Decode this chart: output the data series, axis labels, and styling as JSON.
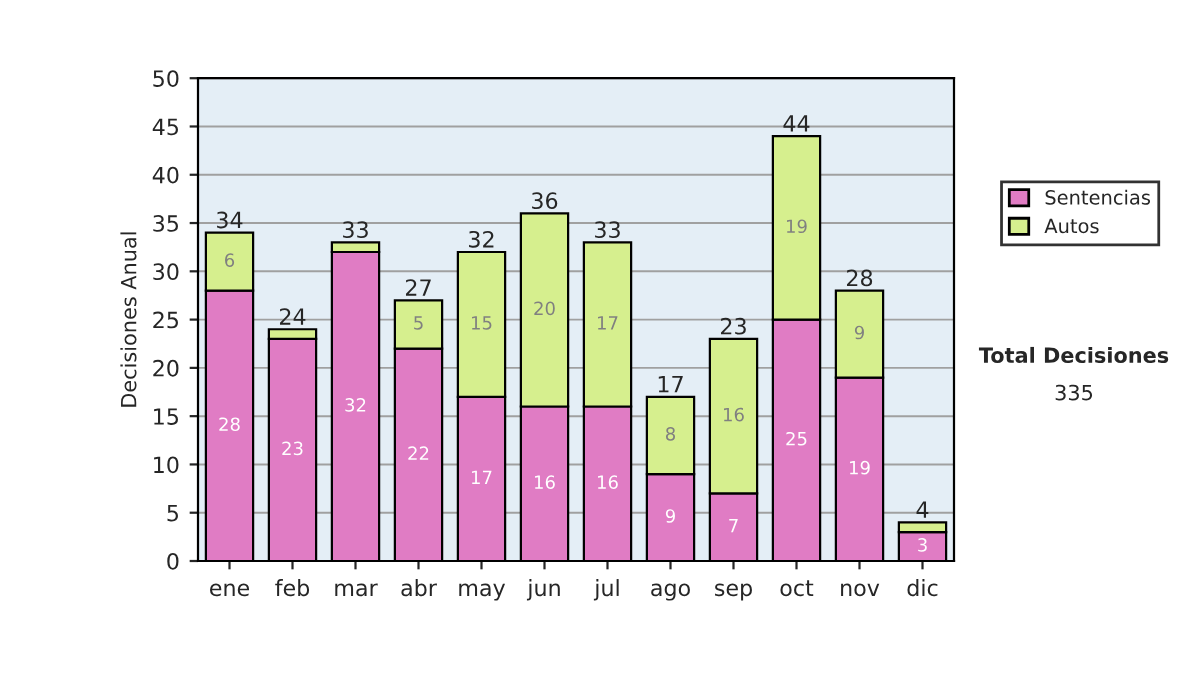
{
  "chart_data": {
    "type": "bar",
    "stacked": true,
    "ylabel": "Decisiones Anual",
    "categories": [
      "ene",
      "feb",
      "mar",
      "abr",
      "may",
      "jun",
      "jul",
      "ago",
      "sep",
      "oct",
      "nov",
      "dic"
    ],
    "series": [
      {
        "name": "Sentencias",
        "color": "#e07cc4",
        "values": [
          28,
          23,
          32,
          22,
          17,
          16,
          16,
          9,
          7,
          25,
          19,
          3
        ],
        "value_labels": [
          "28",
          "23",
          "32",
          "22",
          "17",
          "16",
          "16",
          "9",
          "7",
          "25",
          "19",
          "3"
        ]
      },
      {
        "name": "Autos",
        "color": "#d6ef8e",
        "values": [
          6,
          1,
          1,
          5,
          15,
          20,
          17,
          8,
          16,
          19,
          9,
          1
        ],
        "value_labels": [
          "6",
          null,
          null,
          "5",
          "15",
          "20",
          "17",
          "8",
          "16",
          "19",
          "9",
          null
        ]
      }
    ],
    "totals": [
      "34",
      "24",
      "33",
      "27",
      "32",
      "36",
      "33",
      "17",
      "23",
      "44",
      "28",
      "4"
    ],
    "ylim": [
      0,
      50
    ],
    "yticks": [
      0,
      5,
      10,
      15,
      20,
      25,
      30,
      35,
      40,
      45,
      50
    ],
    "grid": "y",
    "legend": "right",
    "annotations": [
      "Total Decisiones",
      "335"
    ]
  }
}
